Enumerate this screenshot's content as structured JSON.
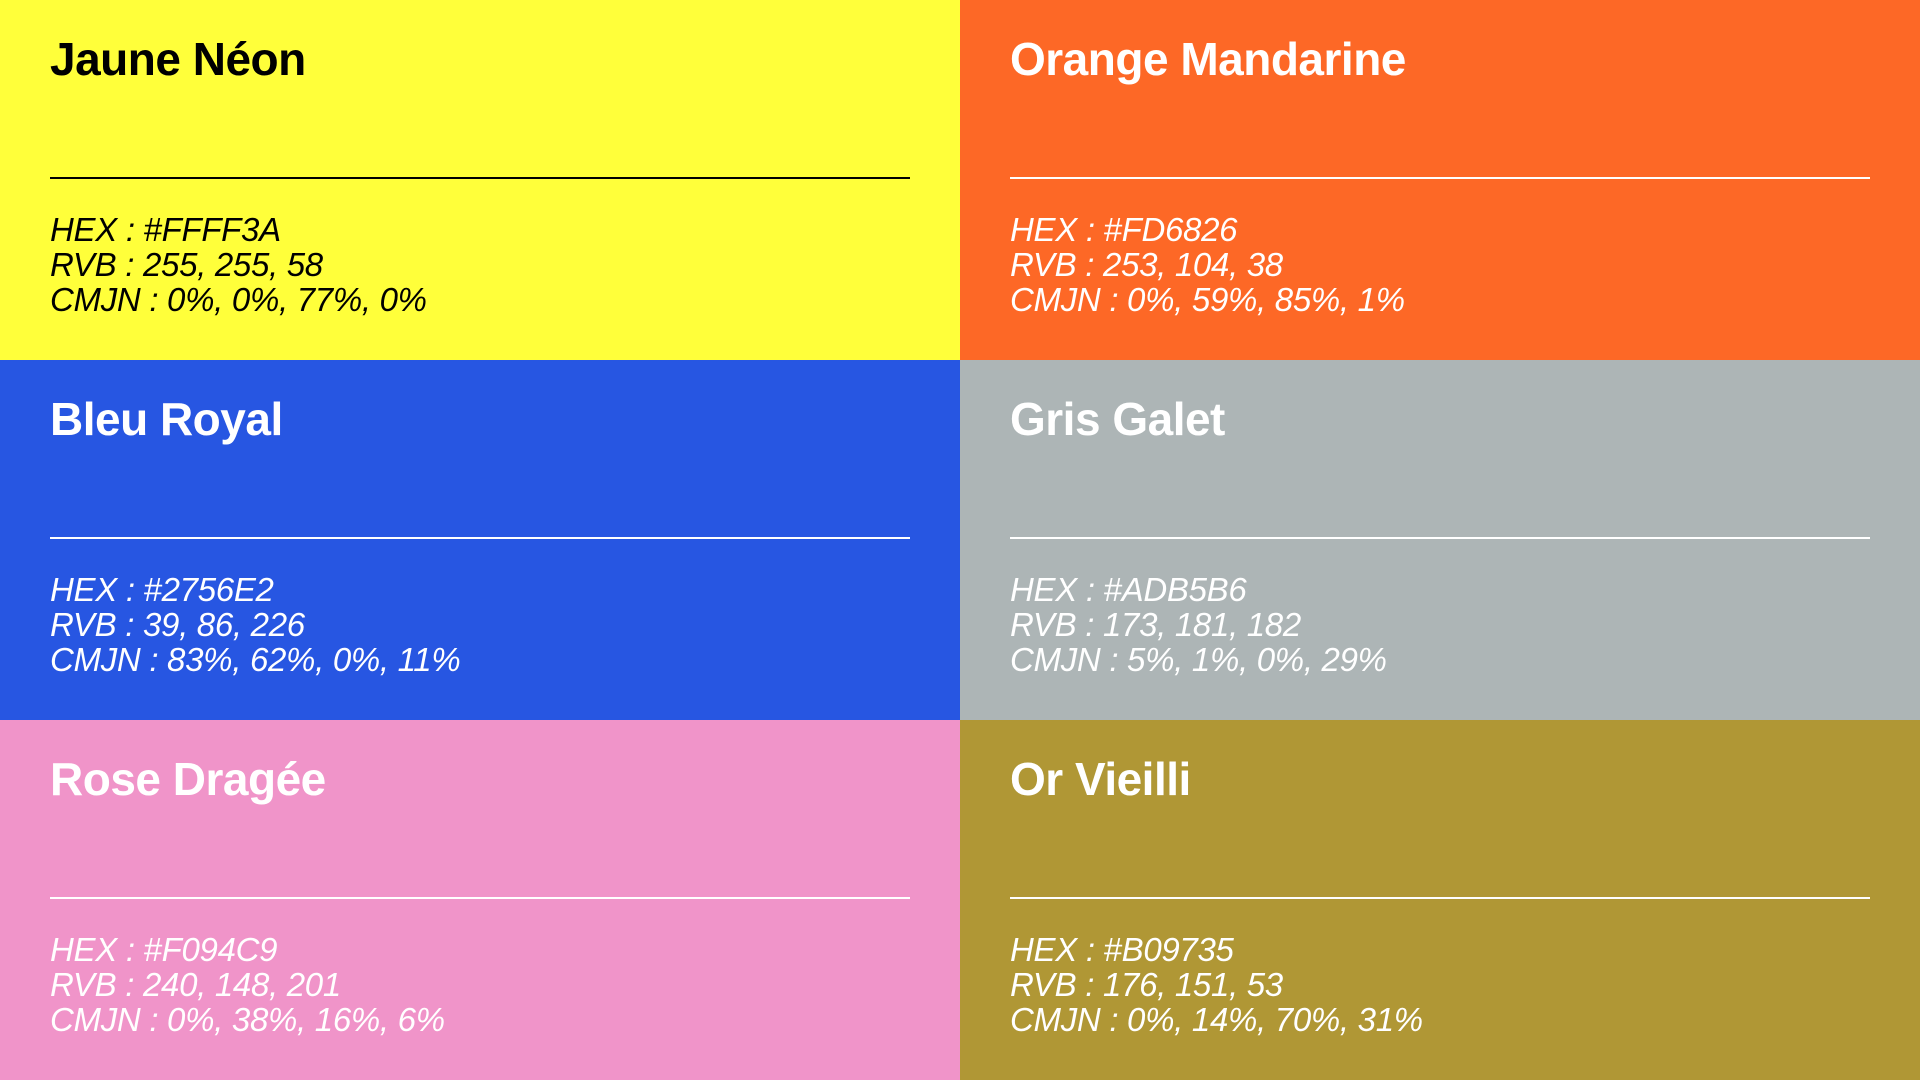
{
  "swatches": [
    {
      "name": "Jaune Néon",
      "bg": "#FFFF3A",
      "text_color": "#000000",
      "hex": "HEX : #FFFF3A",
      "rvb": "RVB : 255, 255, 58",
      "cmjn": "CMJN : 0%, 0%, 77%, 0%"
    },
    {
      "name": "Orange Mandarine",
      "bg": "#FD6826",
      "text_color": "#FFFFFF",
      "hex": "HEX : #FD6826",
      "rvb": "RVB : 253, 104, 38",
      "cmjn": "CMJN : 0%, 59%, 85%, 1%"
    },
    {
      "name": "Bleu Royal",
      "bg": "#2756E2",
      "text_color": "#FFFFFF",
      "hex": "HEX : #2756E2",
      "rvb": "RVB : 39, 86, 226",
      "cmjn": "CMJN : 83%, 62%, 0%, 11%"
    },
    {
      "name": "Gris Galet",
      "bg": "#ADB5B6",
      "text_color": "#FFFFFF",
      "hex": "HEX : #ADB5B6",
      "rvb": "RVB : 173, 181, 182",
      "cmjn": "CMJN : 5%, 1%, 0%, 29%"
    },
    {
      "name": "Rose Dragée",
      "bg": "#F094C9",
      "text_color": "#FFFFFF",
      "hex": "HEX : #F094C9",
      "rvb": "RVB : 240, 148, 201",
      "cmjn": "CMJN : 0%, 38%, 16%, 6%"
    },
    {
      "name": "Or Vieilli",
      "bg": "#B09735",
      "text_color": "#FFFFFF",
      "hex": "HEX : #B09735",
      "rvb": "RVB : 176, 151, 53",
      "cmjn": "CMJN : 0%, 14%, 70%, 31%"
    }
  ]
}
